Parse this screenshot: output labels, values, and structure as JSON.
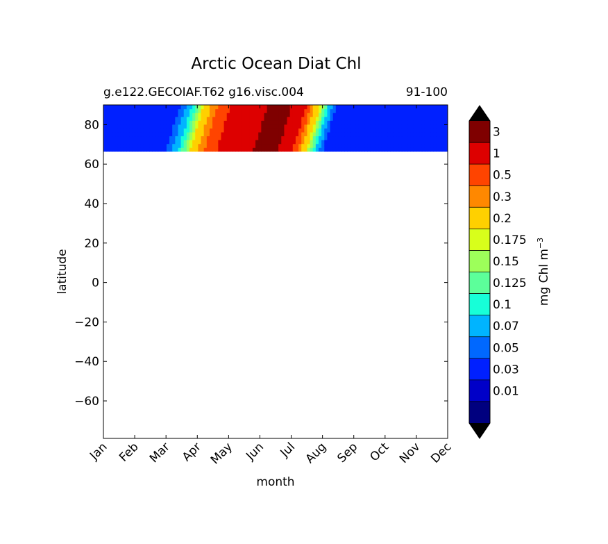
{
  "chart_data": {
    "type": "heatmap",
    "title": "Arctic Ocean Diat Chl",
    "subtitle_left": "g.e122.GECOIAF.T62 g16.visc.004",
    "subtitle_right": "91-100",
    "xlabel": "month",
    "ylabel": "latitude",
    "x_categories": [
      "Jan",
      "Feb",
      "Mar",
      "Apr",
      "May",
      "Jun",
      "Jul",
      "Aug",
      "Sep",
      "Oct",
      "Nov",
      "Dec"
    ],
    "xlim": [
      0,
      11
    ],
    "ylim": [
      -79,
      90
    ],
    "y_ticks": [
      80,
      60,
      40,
      20,
      0,
      -20,
      -40,
      -60
    ],
    "y_tick_labels": [
      "80",
      "60",
      "40",
      "20",
      "0",
      "−20",
      "−40",
      "−60"
    ],
    "data_lat_range": [
      66.5,
      90
    ],
    "colorbar": {
      "label": "mg Chl m",
      "label_superscript": "−3",
      "levels": [
        0.01,
        0.03,
        0.05,
        0.07,
        0.1,
        0.125,
        0.15,
        0.175,
        0.2,
        0.3,
        0.5,
        1,
        3
      ],
      "tick_labels": [
        "0.01",
        "0.03",
        "0.05",
        "0.07",
        "0.1",
        "0.125",
        "0.15",
        "0.175",
        "0.2",
        "0.3",
        "0.5",
        "1",
        "3"
      ],
      "colors": [
        "#00007f",
        "#0000c8",
        "#0020ff",
        "#0068ff",
        "#00b4ff",
        "#17ffd8",
        "#5cff9a",
        "#9dff5a",
        "#d8ff1b",
        "#ffd000",
        "#ff8800",
        "#ff4400",
        "#dd0000",
        "#7f0000"
      ],
      "extend": "both",
      "under_color": "#000000",
      "over_color": "#000000"
    },
    "month_profile": [
      {
        "month": 0,
        "value": 0.04
      },
      {
        "month": 1,
        "value": 0.04
      },
      {
        "month": 2,
        "value": 0.05
      },
      {
        "month": 2.6,
        "value": 0.15
      },
      {
        "month": 3,
        "value": 0.3
      },
      {
        "month": 3.4,
        "value": 0.8
      },
      {
        "month": 4,
        "value": 1.5
      },
      {
        "month": 4.5,
        "value": 2.0
      },
      {
        "month": 5,
        "value": 4.0
      },
      {
        "month": 5.5,
        "value": 3.5
      },
      {
        "month": 6,
        "value": 1.2
      },
      {
        "month": 6.3,
        "value": 0.3
      },
      {
        "month": 6.7,
        "value": 0.12
      },
      {
        "month": 7,
        "value": 0.05
      },
      {
        "month": 8,
        "value": 0.04
      },
      {
        "month": 9,
        "value": 0.035
      },
      {
        "month": 10,
        "value": 0.035
      },
      {
        "month": 11,
        "value": 0.035
      }
    ]
  }
}
